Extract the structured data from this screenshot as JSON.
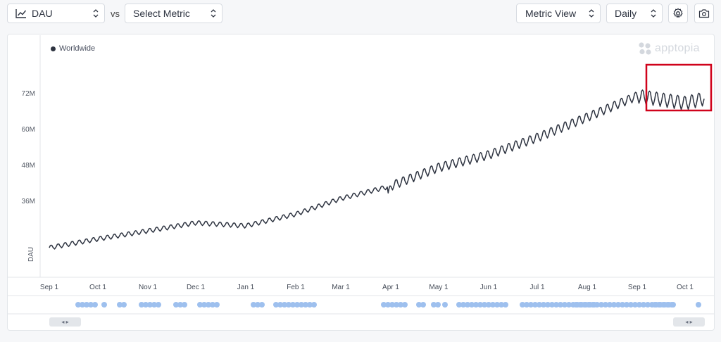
{
  "toolbar": {
    "metric_label": "DAU",
    "vs_label": "vs",
    "compare_label": "Select Metric",
    "view_label": "Metric View",
    "granularity_label": "Daily"
  },
  "chart": {
    "legend_label": "Worldwide",
    "brand": "apptopia",
    "y_axis_title": "DAU",
    "y_ticks": [
      "72M",
      "60M",
      "48M",
      "36M"
    ],
    "x_ticks": [
      "Sep 1",
      "Oct 1",
      "Nov 1",
      "Dec 1",
      "Jan 1",
      "Feb 1",
      "Mar 1",
      "Apr 1",
      "May 1",
      "Jun 1",
      "Jul 1",
      "Aug 1",
      "Sep 1",
      "Oct 1"
    ],
    "highlight_color": "#d0021b",
    "line_color": "#2d3340"
  },
  "chart_data": {
    "type": "line",
    "title": "",
    "xlabel": "",
    "ylabel": "DAU",
    "ylim": [
      19,
      82
    ],
    "series": [
      {
        "name": "Worldwide",
        "x": [
          "Sep 1",
          "Oct 1",
          "Nov 1",
          "Dec 1",
          "Jan 1",
          "Feb 1",
          "Mar 1",
          "Apr 1",
          "May 1",
          "Jun 1",
          "Jul 1",
          "Aug 1",
          "Sep 1",
          "Oct 1",
          "Oct 15"
        ],
        "values": [
          20.7,
          23.6,
          26.3,
          29.0,
          28.0,
          31.9,
          37.1,
          41.3,
          47.5,
          51.7,
          57.5,
          64.3,
          71.4,
          69.0,
          70.5
        ]
      }
    ]
  }
}
